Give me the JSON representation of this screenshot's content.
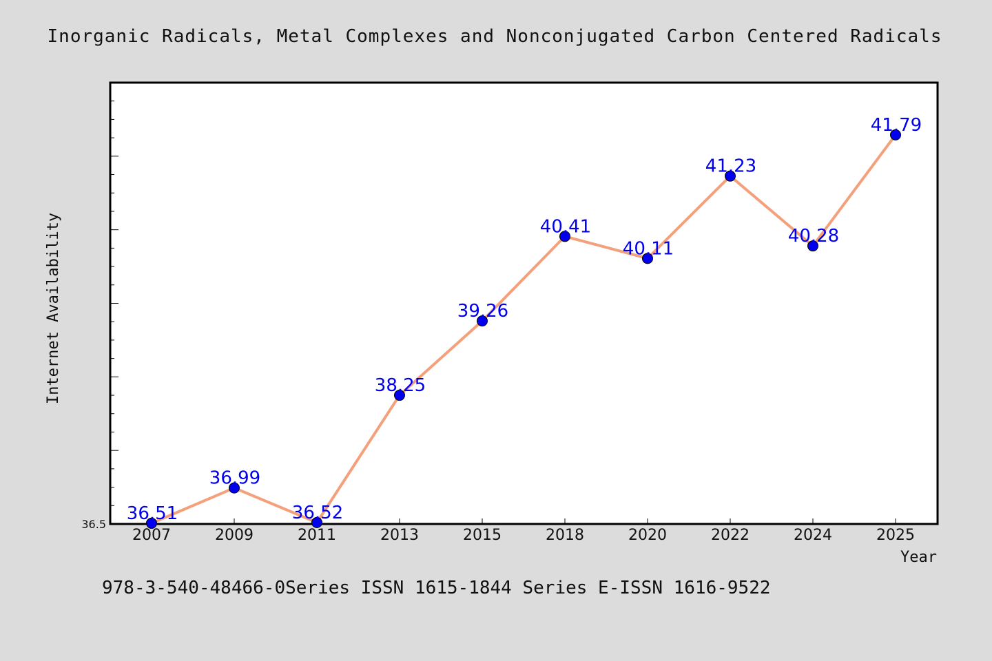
{
  "chart_data": {
    "type": "line",
    "title": "Inorganic Radicals, Metal Complexes and Nonconjugated Carbon Centered Radicals",
    "xlabel": "Year",
    "ylabel": "Internet Availability",
    "categories": [
      "2007",
      "2009",
      "2011",
      "2013",
      "2015",
      "2018",
      "2020",
      "2022",
      "2024",
      "2025"
    ],
    "series": [
      {
        "values": [
          36.51,
          36.99,
          36.52,
          38.25,
          39.26,
          40.41,
          40.11,
          41.23,
          40.28,
          41.79
        ],
        "labels": [
          "36.51",
          "36.99",
          "36.52",
          "38.25",
          "39.26",
          "40.41",
          "40.11",
          "41.23",
          "40.28",
          "41.79"
        ]
      }
    ],
    "ylim": [
      36.5,
      42.5
    ],
    "yticks_labeled": [
      "36.5"
    ],
    "grid": false,
    "colors": {
      "line": "#f4a07c",
      "marker": "#0000ee",
      "data_label": "#0000ee",
      "background": "#dcdcdc",
      "plot_area": "#ffffff"
    }
  },
  "footer": {
    "note": "978-3-540-48466-0Series ISSN 1615-1844 Series E-ISSN 1616-9522"
  }
}
